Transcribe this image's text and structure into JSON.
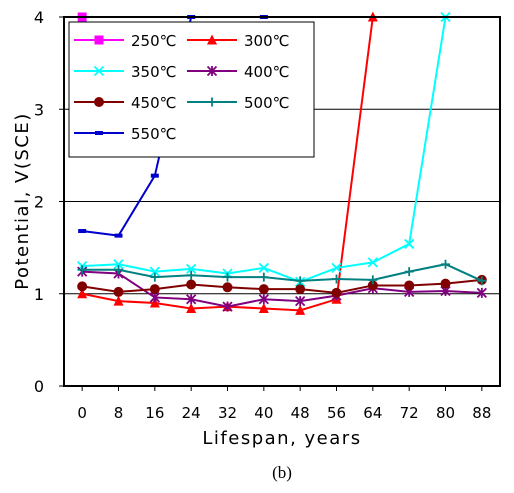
{
  "chart_data": {
    "type": "line",
    "caption": "(b)",
    "xlabel": "Lifespan, years",
    "ylabel": "Potential, V(SCE)",
    "x": [
      0,
      8,
      16,
      24,
      32,
      40,
      48,
      56,
      64,
      72,
      80,
      88
    ],
    "x_ticks": [
      "0",
      "8",
      "16",
      "24",
      "32",
      "40",
      "48",
      "56",
      "64",
      "72",
      "80",
      "88"
    ],
    "y_ticks": [
      0,
      1,
      2,
      3,
      4
    ],
    "xlim": [
      -4,
      92
    ],
    "ylim": [
      0,
      4
    ],
    "grid": "horizontal",
    "legend": "top-left",
    "series": [
      {
        "name": "250℃",
        "color": "#ff00ff",
        "marker": "square",
        "points": [
          [
            0,
            4.0
          ]
        ]
      },
      {
        "name": "300℃",
        "color": "#ff0000",
        "marker": "triangle",
        "points": [
          [
            0,
            1.0
          ],
          [
            8,
            0.92
          ],
          [
            16,
            0.9
          ],
          [
            24,
            0.84
          ],
          [
            32,
            0.86
          ],
          [
            40,
            0.84
          ],
          [
            48,
            0.82
          ],
          [
            56,
            0.94
          ],
          [
            64,
            4.0
          ]
        ]
      },
      {
        "name": "350℃",
        "color": "#00ffff",
        "marker": "x",
        "points": [
          [
            0,
            1.3
          ],
          [
            8,
            1.32
          ],
          [
            16,
            1.24
          ],
          [
            24,
            1.27
          ],
          [
            32,
            1.22
          ],
          [
            40,
            1.28
          ],
          [
            48,
            1.13
          ],
          [
            56,
            1.28
          ],
          [
            64,
            1.34
          ],
          [
            72,
            1.54
          ],
          [
            80,
            4.0
          ]
        ]
      },
      {
        "name": "400℃",
        "color": "#800080",
        "marker": "star",
        "points": [
          [
            0,
            1.24
          ],
          [
            8,
            1.22
          ],
          [
            16,
            0.96
          ],
          [
            24,
            0.94
          ],
          [
            32,
            0.86
          ],
          [
            40,
            0.94
          ],
          [
            48,
            0.92
          ],
          [
            56,
            0.98
          ],
          [
            64,
            1.06
          ],
          [
            72,
            1.02
          ],
          [
            80,
            1.03
          ],
          [
            88,
            1.01
          ]
        ]
      },
      {
        "name": "450℃",
        "color": "#800000",
        "marker": "circle",
        "points": [
          [
            0,
            1.08
          ],
          [
            8,
            1.02
          ],
          [
            16,
            1.05
          ],
          [
            24,
            1.1
          ],
          [
            32,
            1.07
          ],
          [
            40,
            1.05
          ],
          [
            48,
            1.05
          ],
          [
            56,
            1.01
          ],
          [
            64,
            1.09
          ],
          [
            72,
            1.09
          ],
          [
            80,
            1.11
          ],
          [
            88,
            1.15
          ]
        ]
      },
      {
        "name": "500℃",
        "color": "#008080",
        "marker": "plus",
        "points": [
          [
            0,
            1.26
          ],
          [
            8,
            1.26
          ],
          [
            16,
            1.18
          ],
          [
            24,
            1.2
          ],
          [
            32,
            1.18
          ],
          [
            40,
            1.18
          ],
          [
            48,
            1.14
          ],
          [
            56,
            1.16
          ],
          [
            64,
            1.15
          ],
          [
            72,
            1.24
          ],
          [
            80,
            1.32
          ],
          [
            88,
            1.14
          ]
        ]
      },
      {
        "name": "550℃",
        "color": "#0000cc",
        "marker": "dash",
        "points": [
          [
            0,
            1.68
          ],
          [
            8,
            1.63
          ],
          [
            16,
            2.28
          ],
          [
            24,
            4.0
          ],
          [
            40,
            4.0
          ]
        ]
      }
    ]
  }
}
